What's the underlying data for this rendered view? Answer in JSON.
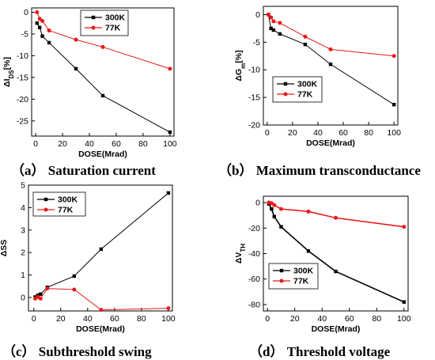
{
  "colors": {
    "s300": "#000000",
    "s77": "#e8191c"
  },
  "chart_data": [
    {
      "id": "a",
      "type": "line",
      "caption": "（a） Saturation current",
      "xlabel": "DOSE(Mrad)",
      "ylabel": "ΔI",
      "ylabel_sub": "DS",
      "ylabel_suffix": "[%]",
      "xlim": [
        -3,
        103
      ],
      "ylim": [
        -28.5,
        1
      ],
      "xticks": [
        0,
        20,
        40,
        60,
        80,
        100
      ],
      "yticks": [
        0,
        -5,
        -10,
        -15,
        -20,
        -25
      ],
      "legend_position": "top-right",
      "series": [
        {
          "name": "300K",
          "color": "#000000",
          "marker": "square",
          "x": [
            1,
            3,
            5,
            10,
            30,
            50,
            100
          ],
          "y": [
            -2.5,
            -3.5,
            -5.5,
            -7,
            -13,
            -19.2,
            -27.6
          ]
        },
        {
          "name": "77K",
          "color": "#e8191c",
          "marker": "circle",
          "x": [
            1,
            3,
            5,
            10,
            30,
            50,
            100
          ],
          "y": [
            0,
            -1.5,
            -2,
            -4.2,
            -6.3,
            -8,
            -13
          ]
        }
      ]
    },
    {
      "id": "b",
      "type": "line",
      "caption": "（b） Maximum transconductance",
      "xlabel": "DOSE(Mrad)",
      "ylabel": "ΔG",
      "ylabel_sub": "m",
      "ylabel_suffix": "[%]",
      "xlim": [
        -3,
        103
      ],
      "ylim": [
        -20,
        1.5
      ],
      "xticks": [
        0,
        20,
        40,
        60,
        80,
        100
      ],
      "yticks": [
        0,
        -5,
        -10,
        -15,
        -20
      ],
      "legend_position": "lower-left",
      "series": [
        {
          "name": "300K",
          "color": "#000000",
          "marker": "square",
          "x": [
            1,
            3,
            5,
            10,
            30,
            50,
            100
          ],
          "y": [
            0,
            -2.5,
            -2.8,
            -3.5,
            -5.4,
            -9,
            -16.3
          ]
        },
        {
          "name": "77K",
          "color": "#e8191c",
          "marker": "circle",
          "x": [
            1,
            3,
            5,
            10,
            30,
            50,
            100
          ],
          "y": [
            0,
            -0.5,
            -1.2,
            -1.5,
            -4,
            -6.3,
            -7.5
          ]
        }
      ]
    },
    {
      "id": "c",
      "type": "line",
      "caption": "（c） Subthreshold swing",
      "xlabel": "DOSE(Mrad)",
      "ylabel": "ΔSS",
      "ylabel_sub": "",
      "ylabel_suffix": "",
      "xlim": [
        -4,
        103
      ],
      "ylim": [
        -0.6,
        5
      ],
      "xticks": [
        0,
        20,
        40,
        60,
        80,
        100
      ],
      "yticks": [
        0,
        1,
        2,
        3,
        4,
        5
      ],
      "legend_position": "top-left",
      "series": [
        {
          "name": "300K",
          "color": "#000000",
          "marker": "square",
          "x": [
            1,
            3,
            5,
            10,
            30,
            50,
            100
          ],
          "y": [
            0.02,
            0.1,
            0.15,
            0.45,
            0.95,
            2.15,
            4.65
          ]
        },
        {
          "name": "77K",
          "color": "#e8191c",
          "marker": "circle",
          "x": [
            1,
            3,
            5,
            10,
            30,
            50,
            100
          ],
          "y": [
            -0.05,
            0.02,
            -0.05,
            0.4,
            0.35,
            -0.55,
            -0.48
          ]
        }
      ]
    },
    {
      "id": "d",
      "type": "line",
      "caption": "（d） Threshold voltage",
      "xlabel": "DOSE(Mrad)",
      "ylabel": "ΔV",
      "ylabel_sub": "TH",
      "ylabel_suffix": "",
      "xlim": [
        -3,
        103
      ],
      "ylim": [
        -85,
        5
      ],
      "xticks": [
        0,
        20,
        40,
        60,
        80,
        100
      ],
      "yticks": [
        0,
        -20,
        -40,
        -60,
        -80
      ],
      "legend_position": "lower-left",
      "series": [
        {
          "name": "300K",
          "color": "#000000",
          "marker": "square",
          "x": [
            1,
            3,
            5,
            10,
            30,
            50,
            100
          ],
          "y": [
            -1,
            -5,
            -11,
            -19,
            -38,
            -54,
            -78
          ]
        },
        {
          "name": "77K",
          "color": "#e8191c",
          "marker": "circle",
          "x": [
            1,
            3,
            5,
            10,
            30,
            50,
            100
          ],
          "y": [
            0,
            -0.5,
            -2,
            -5,
            -7,
            -12,
            -19
          ]
        }
      ]
    }
  ]
}
